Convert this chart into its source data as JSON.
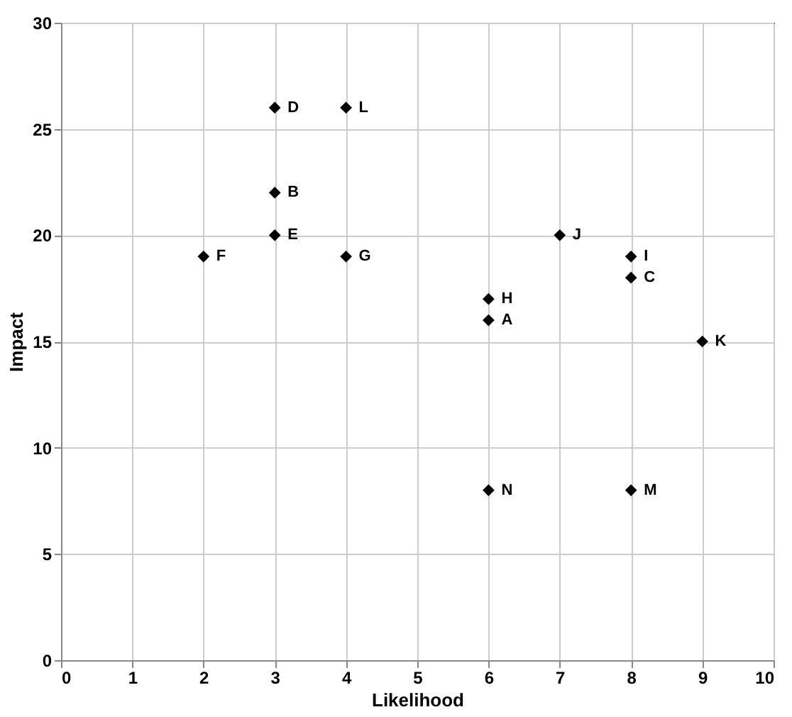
{
  "chart_data": {
    "type": "scatter",
    "xlabel": "Likelihood",
    "ylabel": "Impact",
    "x": [
      6,
      3,
      8,
      3,
      3,
      2,
      4,
      6,
      8,
      7,
      9,
      4,
      8,
      6
    ],
    "values": [
      16,
      22,
      18,
      26,
      20,
      19,
      19,
      17,
      19,
      20,
      15,
      26,
      8,
      8
    ],
    "color": "#000000",
    "marker": "diamond",
    "xlim": [
      0,
      10
    ],
    "xticks": [
      0,
      1,
      2,
      3,
      4,
      5,
      6,
      7,
      8,
      9,
      10
    ],
    "ylim": [
      0,
      30
    ],
    "yticks": [
      0,
      5,
      10,
      15,
      20,
      25,
      30
    ],
    "grid": true,
    "annotations": [
      {
        "text": "A",
        "x": 6,
        "y": 16
      },
      {
        "text": "B",
        "x": 3,
        "y": 22
      },
      {
        "text": "C",
        "x": 8,
        "y": 18
      },
      {
        "text": "D",
        "x": 3,
        "y": 26
      },
      {
        "text": "E",
        "x": 3,
        "y": 20
      },
      {
        "text": "F",
        "x": 2,
        "y": 19
      },
      {
        "text": "G",
        "x": 4,
        "y": 19
      },
      {
        "text": "H",
        "x": 6,
        "y": 17
      },
      {
        "text": "I",
        "x": 8,
        "y": 19
      },
      {
        "text": "J",
        "x": 7,
        "y": 20
      },
      {
        "text": "K",
        "x": 9,
        "y": 15
      },
      {
        "text": "L",
        "x": 4,
        "y": 26
      },
      {
        "text": "M",
        "x": 8,
        "y": 8
      },
      {
        "text": "N",
        "x": 6,
        "y": 8
      }
    ]
  }
}
